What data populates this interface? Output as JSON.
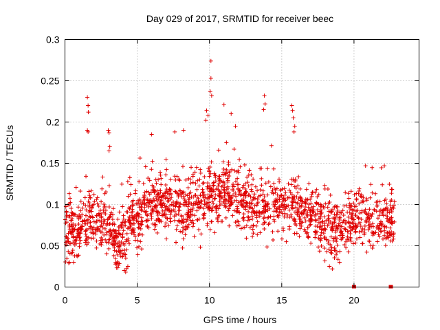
{
  "chart_data": {
    "type": "scatter",
    "title": "Day 029 of 2017, SRMTID for receiver beec",
    "xlabel": "GPS time / hours",
    "ylabel": "SRMTID / TECUs",
    "xlim": [
      0,
      24.5
    ],
    "ylim": [
      0,
      0.3
    ],
    "xticks": [
      0,
      5,
      10,
      15,
      20
    ],
    "yticks": [
      0,
      0.05,
      0.1,
      0.15,
      0.2,
      0.25,
      0.3
    ],
    "xtick_labels": [
      "0",
      "5",
      "10",
      "15",
      "20"
    ],
    "ytick_labels": [
      "0",
      "0.05",
      "0.1",
      "0.15",
      "0.2",
      "0.25",
      "0.3"
    ],
    "grid": true,
    "marker": "+",
    "color": "#e00000",
    "series": [
      {
        "name": "SRMTID",
        "profile": [
          [
            0.0,
            0.065
          ],
          [
            0.5,
            0.065
          ],
          [
            1.0,
            0.07
          ],
          [
            1.5,
            0.085
          ],
          [
            2.0,
            0.085
          ],
          [
            2.5,
            0.075
          ],
          [
            3.0,
            0.08
          ],
          [
            3.5,
            0.055
          ],
          [
            4.0,
            0.06
          ],
          [
            4.5,
            0.075
          ],
          [
            5.0,
            0.08
          ],
          [
            5.5,
            0.1
          ],
          [
            6.0,
            0.105
          ],
          [
            6.5,
            0.1
          ],
          [
            7.0,
            0.1
          ],
          [
            8.0,
            0.095
          ],
          [
            9.0,
            0.1
          ],
          [
            10.0,
            0.105
          ],
          [
            11.0,
            0.115
          ],
          [
            12.0,
            0.11
          ],
          [
            13.0,
            0.095
          ],
          [
            14.0,
            0.1
          ],
          [
            15.0,
            0.105
          ],
          [
            16.0,
            0.095
          ],
          [
            17.0,
            0.09
          ],
          [
            18.0,
            0.075
          ],
          [
            19.0,
            0.065
          ],
          [
            19.5,
            0.075
          ],
          [
            20.0,
            0.085
          ],
          [
            21.0,
            0.075
          ],
          [
            22.0,
            0.08
          ],
          [
            22.8,
            0.08
          ]
        ],
        "spread": 0.028,
        "count": 1900,
        "outliers": [
          [
            1.55,
            0.23
          ],
          [
            1.6,
            0.22
          ],
          [
            1.62,
            0.212
          ],
          [
            1.55,
            0.19
          ],
          [
            1.6,
            0.188
          ],
          [
            3.0,
            0.19
          ],
          [
            3.05,
            0.187
          ],
          [
            3.1,
            0.17
          ],
          [
            3.05,
            0.165
          ],
          [
            10.1,
            0.274
          ],
          [
            10.1,
            0.253
          ],
          [
            10.05,
            0.237
          ],
          [
            10.15,
            0.232
          ],
          [
            9.8,
            0.214
          ],
          [
            9.9,
            0.208
          ],
          [
            9.75,
            0.202
          ],
          [
            11.0,
            0.221
          ],
          [
            11.5,
            0.21
          ],
          [
            11.8,
            0.195
          ],
          [
            13.8,
            0.232
          ],
          [
            13.85,
            0.222
          ],
          [
            13.75,
            0.215
          ],
          [
            15.7,
            0.22
          ],
          [
            15.75,
            0.214
          ],
          [
            15.8,
            0.205
          ],
          [
            15.9,
            0.195
          ],
          [
            15.85,
            0.188
          ],
          [
            8.2,
            0.19
          ],
          [
            7.6,
            0.188
          ],
          [
            6.0,
            0.185
          ],
          [
            20.8,
            0.147
          ],
          [
            22.1,
            0.147
          ],
          [
            4.2,
            0.018
          ],
          [
            4.1,
            0.02
          ],
          [
            4.35,
            0.025
          ],
          [
            18.5,
            0.022
          ],
          [
            18.3,
            0.025
          ],
          [
            0.3,
            0.03
          ],
          [
            0.6,
            0.03
          ],
          [
            19.0,
            0.03
          ]
        ],
        "zero_points": [
          [
            20.0,
            0.0
          ],
          [
            22.55,
            0.0
          ]
        ]
      }
    ]
  }
}
